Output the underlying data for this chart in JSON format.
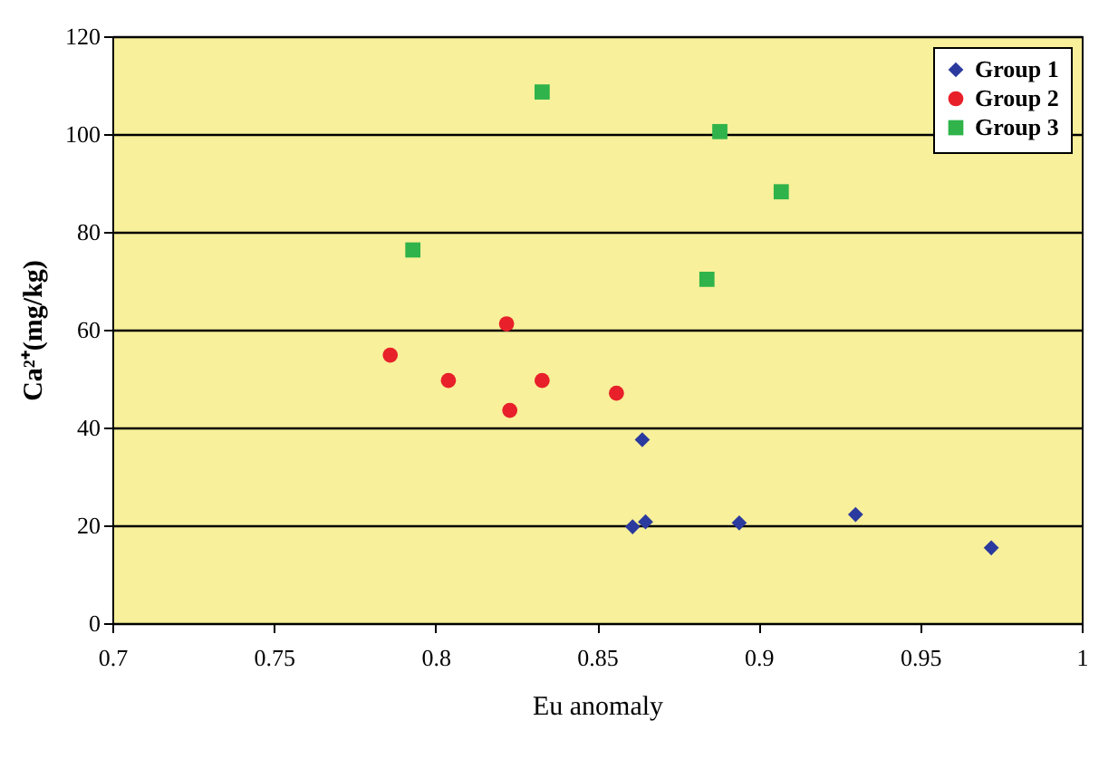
{
  "chart_data": {
    "type": "scatter",
    "xlabel": "Eu anomaly",
    "ylabel": "Ca²⁺(mg/kg)",
    "xlim": [
      0.7,
      1
    ],
    "xticks": [
      0.7,
      0.75,
      0.8,
      0.85,
      0.9,
      0.95,
      1
    ],
    "ylim": [
      0,
      120
    ],
    "yticks": [
      0,
      20,
      40,
      60,
      80,
      100,
      120
    ],
    "grid": "y",
    "legend": "top right",
    "series": [
      {
        "name": "Group 1",
        "color": "#2b3a9e",
        "marker": "diamond",
        "x": [
          0.864,
          0.861,
          0.865,
          0.894,
          0.93,
          0.972
        ],
        "values": [
          37.5,
          19.7,
          20.7,
          20.5,
          22.2,
          15.4
        ]
      },
      {
        "name": "Group 2",
        "color": "#e8202a",
        "marker": "circle",
        "x": [
          0.786,
          0.804,
          0.822,
          0.823,
          0.833,
          0.856
        ],
        "values": [
          54.8,
          49.6,
          61.2,
          43.5,
          49.6,
          47.0
        ]
      },
      {
        "name": "Group 3",
        "color": "#2fb34a",
        "marker": "square",
        "x": [
          0.833,
          0.793,
          0.888,
          0.907,
          0.884
        ],
        "values": [
          108.6,
          76.3,
          100.5,
          88.2,
          70.3
        ]
      }
    ]
  }
}
